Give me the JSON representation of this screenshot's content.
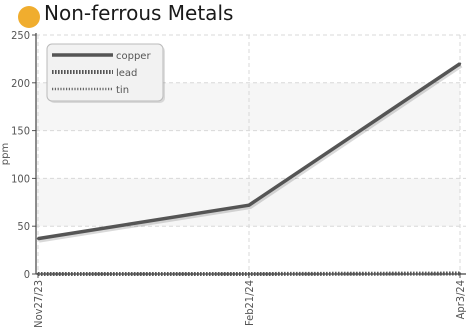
{
  "header": {
    "title": "Non-ferrous Metals",
    "dot_color": "#f0ad2e"
  },
  "chart_data": {
    "type": "line",
    "title": "Non-ferrous Metals",
    "ylabel": "ppm",
    "xlabel": "",
    "ylim": [
      0,
      250
    ],
    "yticks": [
      0,
      50,
      100,
      150,
      200,
      250
    ],
    "categories": [
      "Nov27/23",
      "Feb21/24",
      "Apr3/24"
    ],
    "series": [
      {
        "name": "copper",
        "values": [
          37,
          72,
          220
        ],
        "color": "#555555",
        "style": "solid"
      },
      {
        "name": "lead",
        "values": [
          0,
          0,
          0.5
        ],
        "color": "#555555",
        "style": "dotted"
      },
      {
        "name": "tin",
        "values": [
          0,
          0,
          0
        ],
        "color": "#666666",
        "style": "dotted-thin"
      }
    ],
    "grid": true,
    "legend_position": "top-left"
  }
}
